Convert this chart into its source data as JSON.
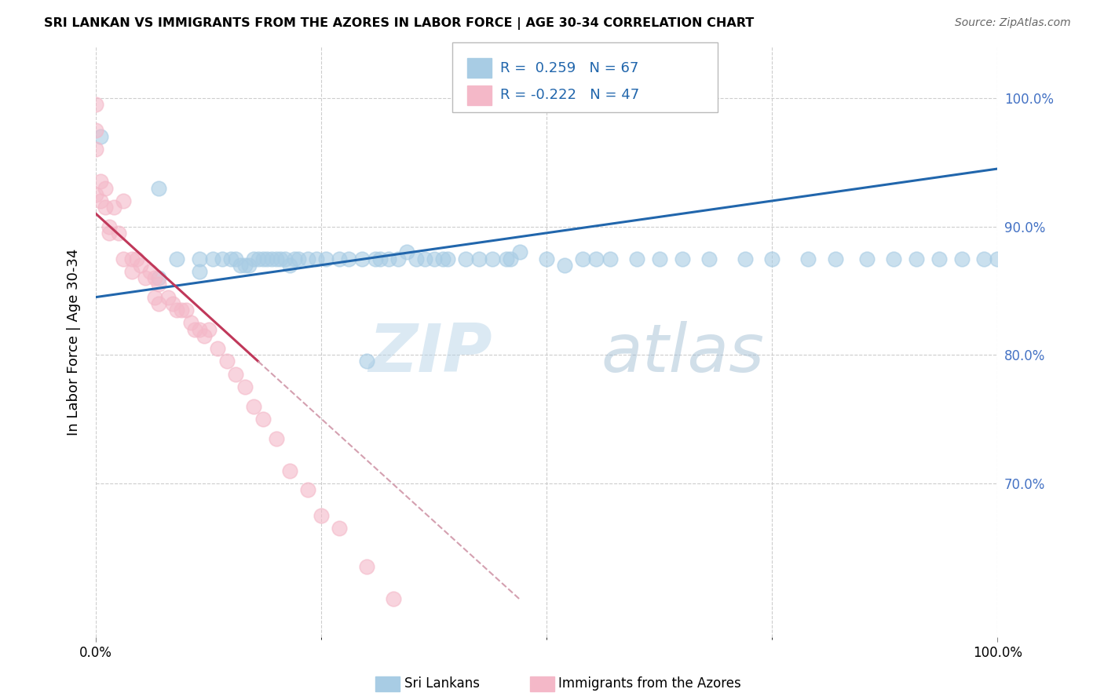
{
  "title": "SRI LANKAN VS IMMIGRANTS FROM THE AZORES IN LABOR FORCE | AGE 30-34 CORRELATION CHART",
  "source": "Source: ZipAtlas.com",
  "ylabel": "In Labor Force | Age 30-34",
  "legend_label_1": "Sri Lankans",
  "legend_label_2": "Immigrants from the Azores",
  "r1": 0.259,
  "n1": 67,
  "r2": -0.222,
  "n2": 47,
  "blue_color": "#a8cce4",
  "pink_color": "#f4b8c8",
  "blue_line_color": "#2166ac",
  "pink_line_color": "#c0385a",
  "pink_line_dash_color": "#d4a0b0",
  "xlim": [
    0.0,
    1.0
  ],
  "ylim": [
    0.58,
    1.04
  ],
  "watermark_zip": "ZIP",
  "watermark_atlas": "atlas",
  "blue_scatter_x": [
    0.005,
    0.07,
    0.09,
    0.115,
    0.115,
    0.13,
    0.14,
    0.15,
    0.155,
    0.16,
    0.165,
    0.17,
    0.175,
    0.18,
    0.185,
    0.19,
    0.195,
    0.2,
    0.205,
    0.21,
    0.215,
    0.22,
    0.225,
    0.235,
    0.245,
    0.255,
    0.27,
    0.28,
    0.295,
    0.31,
    0.315,
    0.325,
    0.335,
    0.345,
    0.355,
    0.365,
    0.375,
    0.385,
    0.39,
    0.41,
    0.425,
    0.44,
    0.455,
    0.46,
    0.47,
    0.5,
    0.52,
    0.54,
    0.555,
    0.57,
    0.6,
    0.625,
    0.65,
    0.68,
    0.72,
    0.75,
    0.79,
    0.82,
    0.855,
    0.885,
    0.91,
    0.935,
    0.96,
    0.985,
    1.0,
    0.07,
    0.3
  ],
  "blue_scatter_y": [
    0.97,
    0.86,
    0.875,
    0.875,
    0.865,
    0.875,
    0.875,
    0.875,
    0.875,
    0.87,
    0.87,
    0.87,
    0.875,
    0.875,
    0.875,
    0.875,
    0.875,
    0.875,
    0.875,
    0.875,
    0.87,
    0.875,
    0.875,
    0.875,
    0.875,
    0.875,
    0.875,
    0.875,
    0.875,
    0.875,
    0.875,
    0.875,
    0.875,
    0.88,
    0.875,
    0.875,
    0.875,
    0.875,
    0.875,
    0.875,
    0.875,
    0.875,
    0.875,
    0.875,
    0.88,
    0.875,
    0.87,
    0.875,
    0.875,
    0.875,
    0.875,
    0.875,
    0.875,
    0.875,
    0.875,
    0.875,
    0.875,
    0.875,
    0.875,
    0.875,
    0.875,
    0.875,
    0.875,
    0.875,
    0.875,
    0.93,
    0.795
  ],
  "pink_scatter_x": [
    0.0,
    0.0,
    0.0,
    0.0,
    0.005,
    0.005,
    0.01,
    0.01,
    0.015,
    0.015,
    0.02,
    0.025,
    0.03,
    0.03,
    0.04,
    0.04,
    0.045,
    0.05,
    0.055,
    0.06,
    0.065,
    0.065,
    0.07,
    0.07,
    0.08,
    0.085,
    0.09,
    0.095,
    0.1,
    0.105,
    0.11,
    0.115,
    0.12,
    0.125,
    0.135,
    0.145,
    0.155,
    0.165,
    0.175,
    0.185,
    0.2,
    0.215,
    0.235,
    0.25,
    0.27,
    0.3,
    0.33
  ],
  "pink_scatter_y": [
    0.995,
    0.975,
    0.96,
    0.925,
    0.935,
    0.92,
    0.93,
    0.915,
    0.9,
    0.895,
    0.915,
    0.895,
    0.92,
    0.875,
    0.875,
    0.865,
    0.875,
    0.87,
    0.86,
    0.865,
    0.86,
    0.845,
    0.855,
    0.84,
    0.845,
    0.84,
    0.835,
    0.835,
    0.835,
    0.825,
    0.82,
    0.82,
    0.815,
    0.82,
    0.805,
    0.795,
    0.785,
    0.775,
    0.76,
    0.75,
    0.735,
    0.71,
    0.695,
    0.675,
    0.665,
    0.635,
    0.61
  ]
}
